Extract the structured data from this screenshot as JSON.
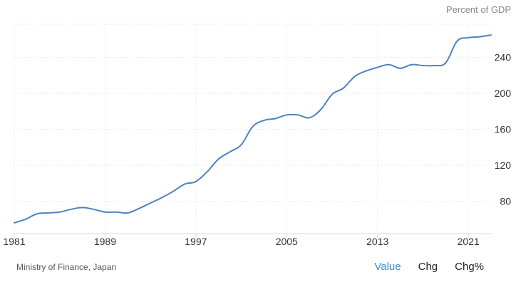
{
  "chart_data": {
    "type": "line",
    "unit_label": "Percent of GDP",
    "x_ticks": [
      "1981",
      "1989",
      "1997",
      "2005",
      "2013",
      "2021"
    ],
    "y_ticks": [
      80,
      120,
      160,
      200,
      240
    ],
    "xlim": [
      1981,
      2023
    ],
    "ylim": [
      44,
      277
    ],
    "grid": true,
    "series": [
      {
        "color": "#4f81bd",
        "x": [
          1981,
          1982,
          1983,
          1984,
          1985,
          1986,
          1987,
          1988,
          1989,
          1990,
          1991,
          1992,
          1993,
          1994,
          1995,
          1996,
          1997,
          1998,
          1999,
          2000,
          2001,
          2002,
          2003,
          2004,
          2005,
          2006,
          2007,
          2008,
          2009,
          2010,
          2011,
          2012,
          2013,
          2014,
          2015,
          2016,
          2017,
          2018,
          2019,
          2020,
          2021,
          2022,
          2023
        ],
        "values": [
          56,
          60,
          66,
          67,
          68,
          71,
          73,
          71,
          68,
          68,
          67,
          72,
          78,
          84,
          91,
          99,
          102,
          113,
          127,
          135,
          143,
          163,
          170,
          172,
          176,
          176,
          173,
          182,
          199,
          206,
          219,
          225,
          229,
          232,
          228,
          232,
          231,
          231,
          234,
          258,
          262,
          263,
          265
        ]
      }
    ]
  },
  "footer": {
    "source": "Ministry of Finance, Japan",
    "buttons": [
      {
        "label": "Value",
        "active": true
      },
      {
        "label": "Chg",
        "active": false
      },
      {
        "label": "Chg%",
        "active": false
      }
    ]
  },
  "colors": {
    "line": "#4f81bd",
    "active_button": "#3b8fd4"
  }
}
